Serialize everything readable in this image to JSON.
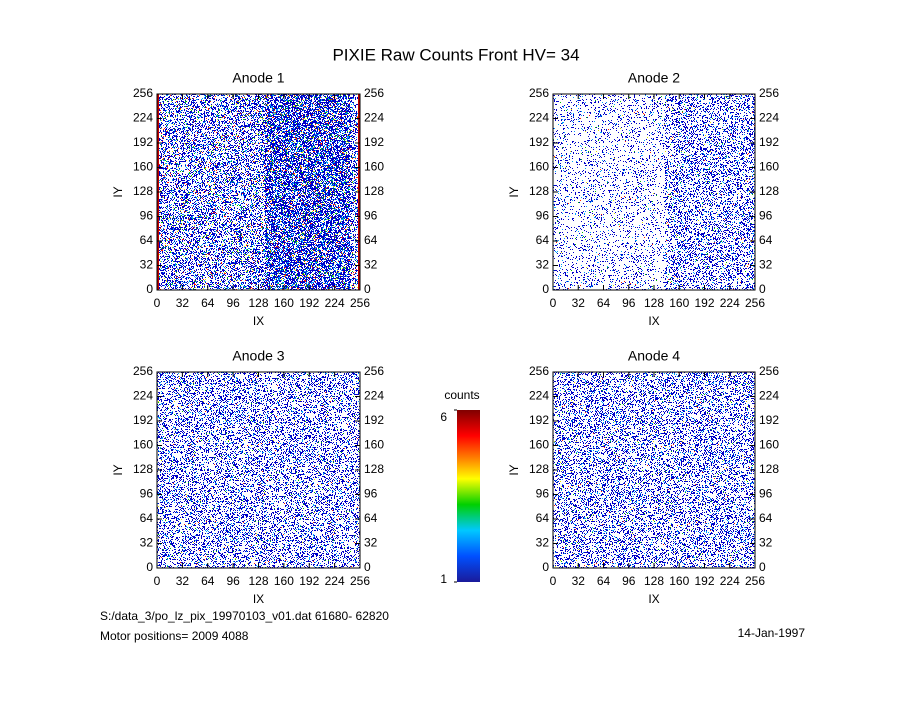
{
  "title": "PIXIE Raw Counts Front HV= 34",
  "chart_data": [
    {
      "type": "heatmap",
      "title": "Anode 1",
      "xlabel": "IX",
      "ylabel": "IY",
      "xlim": [
        0,
        256
      ],
      "ylim": [
        0,
        256
      ],
      "xticks": [
        0,
        32,
        64,
        96,
        128,
        160,
        192,
        224,
        256
      ],
      "yticks": [
        0,
        32,
        64,
        96,
        128,
        160,
        192,
        224,
        256
      ]
    },
    {
      "type": "heatmap",
      "title": "Anode 2",
      "xlabel": "IX",
      "ylabel": "IY",
      "xlim": [
        0,
        256
      ],
      "ylim": [
        0,
        256
      ],
      "xticks": [
        0,
        32,
        64,
        96,
        128,
        160,
        192,
        224,
        256
      ],
      "yticks": [
        0,
        32,
        64,
        96,
        128,
        160,
        192,
        224,
        256
      ]
    },
    {
      "type": "heatmap",
      "title": "Anode 3",
      "xlabel": "IX",
      "ylabel": "IY",
      "xlim": [
        0,
        256
      ],
      "ylim": [
        0,
        256
      ],
      "xticks": [
        0,
        32,
        64,
        96,
        128,
        160,
        192,
        224,
        256
      ],
      "yticks": [
        0,
        32,
        64,
        96,
        128,
        160,
        192,
        224,
        256
      ]
    },
    {
      "type": "heatmap",
      "title": "Anode 4",
      "xlabel": "IX",
      "ylabel": "IY",
      "xlim": [
        0,
        256
      ],
      "ylim": [
        0,
        256
      ],
      "xticks": [
        0,
        32,
        64,
        96,
        128,
        160,
        192,
        224,
        256
      ],
      "yticks": [
        0,
        32,
        64,
        96,
        128,
        160,
        192,
        224,
        256
      ]
    }
  ],
  "colorbar": {
    "label": "counts",
    "lim": [
      1,
      6
    ],
    "ticks": [
      1,
      6
    ]
  },
  "footer": {
    "file": "S:/data_3/po_lz_pix_19970103_v01.dat   61680- 62820",
    "motor": "Motor positions= 2009 4088",
    "date": "14-Jan-1997"
  }
}
